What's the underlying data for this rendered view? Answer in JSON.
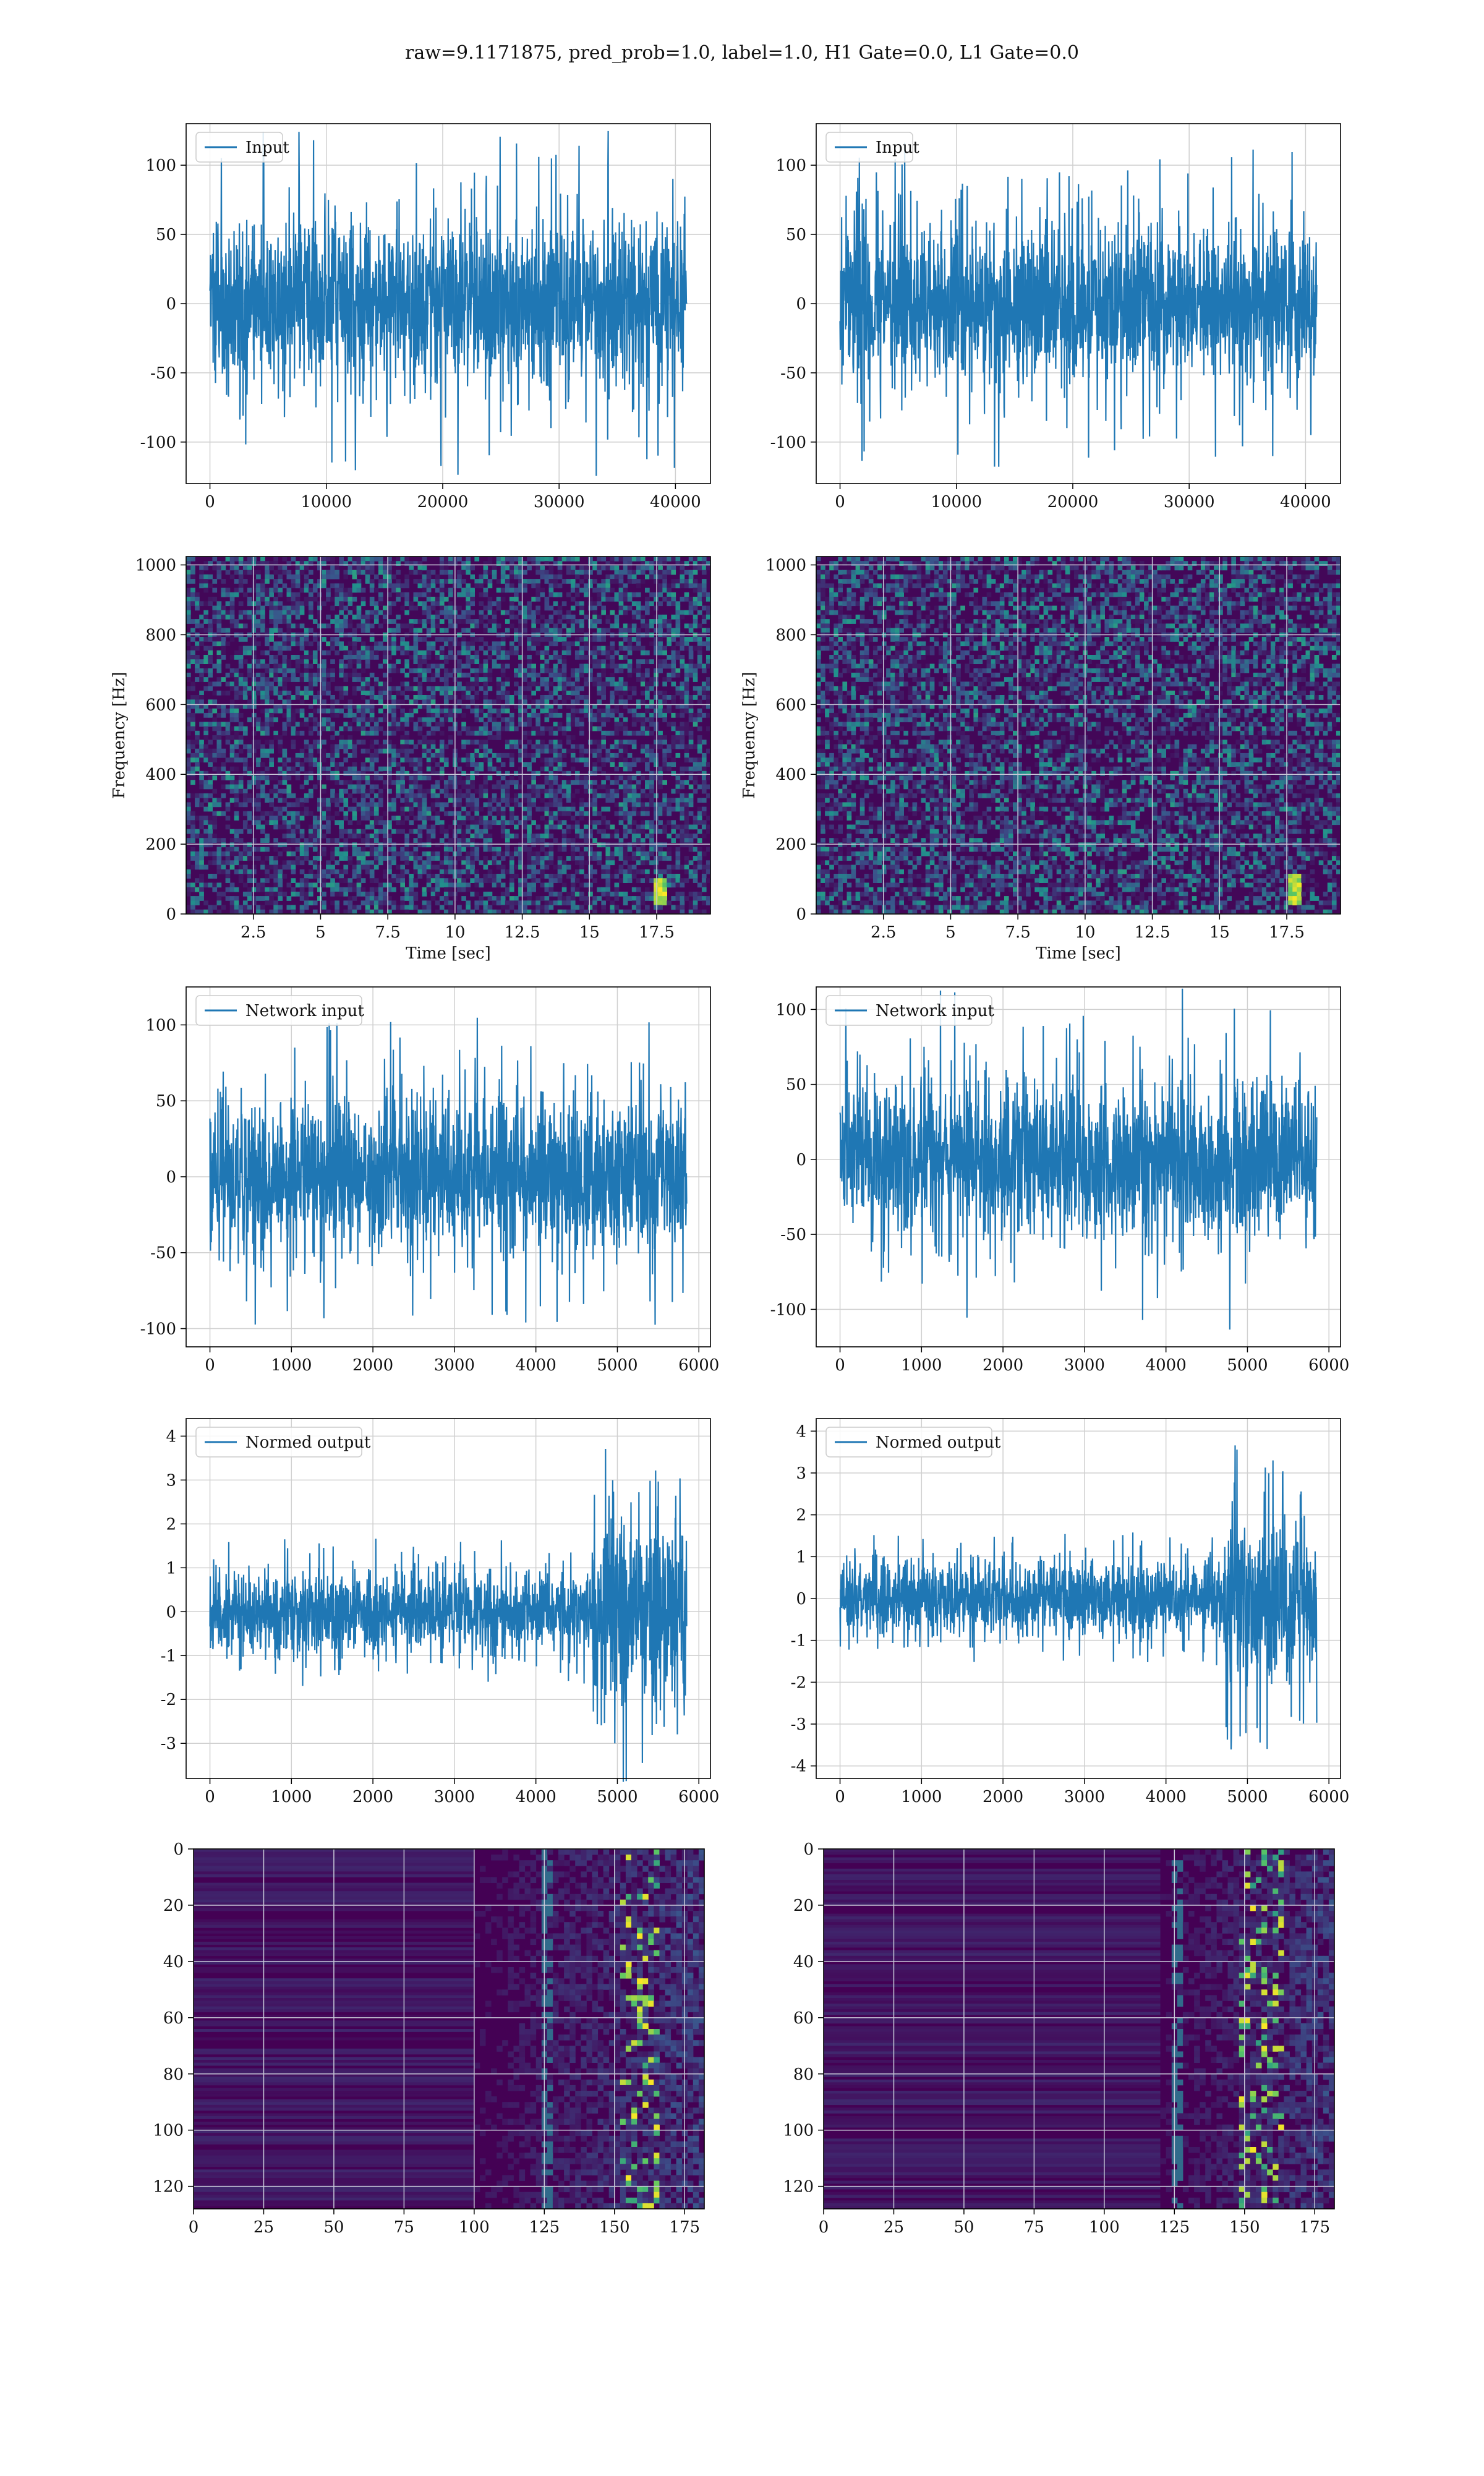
{
  "figure": {
    "suptitle": "raw=9.1171875, pred_prob=1.0, label=1.0, H1 Gate=0.0, L1 Gate=0.0"
  },
  "colors": {
    "line": "#1f77b4",
    "grid": "#d0d0d0",
    "axes": "#000000",
    "viridis_low": "#440154",
    "viridis_mid": "#21918c",
    "viridis_high": "#fde725"
  },
  "chart_data": [
    {
      "id": "input-h1",
      "type": "line",
      "grid": true,
      "legend_position": "upper-left",
      "series": [
        {
          "name": "Input",
          "amplitude_typical": 65,
          "amplitude_peak": 125,
          "offset": 0
        }
      ],
      "x_range": [
        0,
        40960
      ],
      "ylim": [
        -130,
        130
      ],
      "xticks": [
        0,
        10000,
        20000,
        30000,
        40000
      ],
      "yticks": [
        -100,
        -50,
        0,
        50,
        100
      ],
      "xlabel": "",
      "ylabel": ""
    },
    {
      "id": "input-l1",
      "type": "line",
      "grid": true,
      "legend_position": "upper-left",
      "series": [
        {
          "name": "Input",
          "amplitude_typical": 65,
          "amplitude_peak": 120,
          "offset": 0
        }
      ],
      "x_range": [
        0,
        40960
      ],
      "ylim": [
        -130,
        130
      ],
      "xticks": [
        0,
        10000,
        20000,
        30000,
        40000
      ],
      "yticks": [
        -100,
        -50,
        0,
        50,
        100
      ],
      "xlabel": "",
      "ylabel": ""
    },
    {
      "id": "spectrogram-h1",
      "type": "heatmap",
      "grid": true,
      "colormap": "viridis",
      "x_range": [
        0,
        19.5
      ],
      "ylim": [
        0,
        1024
      ],
      "xticks": [
        2.5,
        5.0,
        7.5,
        10.0,
        12.5,
        15.0,
        17.5
      ],
      "yticks": [
        0,
        200,
        400,
        600,
        800,
        1000
      ],
      "xlabel": "Time [sec]",
      "ylabel": "Frequency [Hz]",
      "hotspot": {
        "time": 17.7,
        "freq_low": 20,
        "freq_high": 100
      }
    },
    {
      "id": "spectrogram-l1",
      "type": "heatmap",
      "grid": true,
      "colormap": "viridis",
      "x_range": [
        0,
        19.5
      ],
      "ylim": [
        0,
        1024
      ],
      "xticks": [
        2.5,
        5.0,
        7.5,
        10.0,
        12.5,
        15.0,
        17.5
      ],
      "yticks": [
        0,
        200,
        400,
        600,
        800,
        1000
      ],
      "xlabel": "Time [sec]",
      "ylabel": "Frequency [Hz]",
      "hotspot": {
        "time": 17.8,
        "freq_low": 20,
        "freq_high": 120
      }
    },
    {
      "id": "network-input-h1",
      "type": "line",
      "grid": true,
      "legend_position": "upper-left",
      "series": [
        {
          "name": "Network input",
          "amplitude_typical": 55,
          "amplitude_peak": 110,
          "offset": 0
        }
      ],
      "x_range": [
        0,
        5850
      ],
      "ylim": [
        -112,
        125
      ],
      "xticks": [
        0,
        1000,
        2000,
        3000,
        4000,
        5000,
        6000
      ],
      "yticks": [
        -100,
        -50,
        0,
        50,
        100
      ],
      "xlabel": "",
      "ylabel": ""
    },
    {
      "id": "network-input-l1",
      "type": "line",
      "grid": true,
      "legend_position": "upper-left",
      "series": [
        {
          "name": "Network input",
          "amplitude_typical": 55,
          "amplitude_peak": 115,
          "offset": 0
        }
      ],
      "x_range": [
        0,
        5850
      ],
      "ylim": [
        -125,
        115
      ],
      "xticks": [
        0,
        1000,
        2000,
        3000,
        4000,
        5000,
        6000
      ],
      "yticks": [
        -100,
        -50,
        0,
        50,
        100
      ],
      "xlabel": "",
      "ylabel": ""
    },
    {
      "id": "normed-output-h1",
      "type": "line",
      "grid": true,
      "legend_position": "upper-left",
      "series": [
        {
          "name": "Normed output",
          "amplitude_typical": 1.0,
          "amplitude_peak": 1.7,
          "offset": 0,
          "burst_start": 4700,
          "burst_amplitude": 3.9
        }
      ],
      "x_range": [
        0,
        5850
      ],
      "ylim": [
        -3.8,
        4.4
      ],
      "xticks": [
        0,
        1000,
        2000,
        3000,
        4000,
        5000,
        6000
      ],
      "yticks": [
        -3,
        -2,
        -1,
        0,
        1,
        2,
        3,
        4
      ],
      "xlabel": "",
      "ylabel": ""
    },
    {
      "id": "normed-output-l1",
      "type": "line",
      "grid": true,
      "legend_position": "upper-left",
      "series": [
        {
          "name": "Normed output",
          "amplitude_typical": 1.0,
          "amplitude_peak": 1.6,
          "offset": 0,
          "burst_start": 4700,
          "burst_amplitude": 3.9
        }
      ],
      "x_range": [
        0,
        5850
      ],
      "ylim": [
        -4.3,
        4.3
      ],
      "xticks": [
        0,
        1000,
        2000,
        3000,
        4000,
        5000,
        6000
      ],
      "yticks": [
        -4,
        -3,
        -2,
        -1,
        0,
        1,
        2,
        3,
        4
      ],
      "xlabel": "",
      "ylabel": ""
    },
    {
      "id": "feature-map-h1",
      "type": "heatmap",
      "grid": true,
      "colormap": "viridis",
      "x_range": [
        0,
        182
      ],
      "ylim": [
        128,
        0
      ],
      "xticks": [
        0,
        25,
        50,
        75,
        100,
        125,
        150,
        175
      ],
      "yticks": [
        0,
        20,
        40,
        60,
        80,
        100,
        120
      ],
      "xlabel": "",
      "ylabel": "",
      "onset_column": 100,
      "hot_band": [
        152,
        165
      ]
    },
    {
      "id": "feature-map-l1",
      "type": "heatmap",
      "grid": true,
      "colormap": "viridis",
      "x_range": [
        0,
        182
      ],
      "ylim": [
        128,
        0
      ],
      "xticks": [
        0,
        25,
        50,
        75,
        100,
        125,
        150,
        175
      ],
      "yticks": [
        0,
        20,
        40,
        60,
        80,
        100,
        120
      ],
      "xlabel": "",
      "ylabel": "",
      "onset_column": 120,
      "hot_band": [
        148,
        162
      ]
    }
  ]
}
